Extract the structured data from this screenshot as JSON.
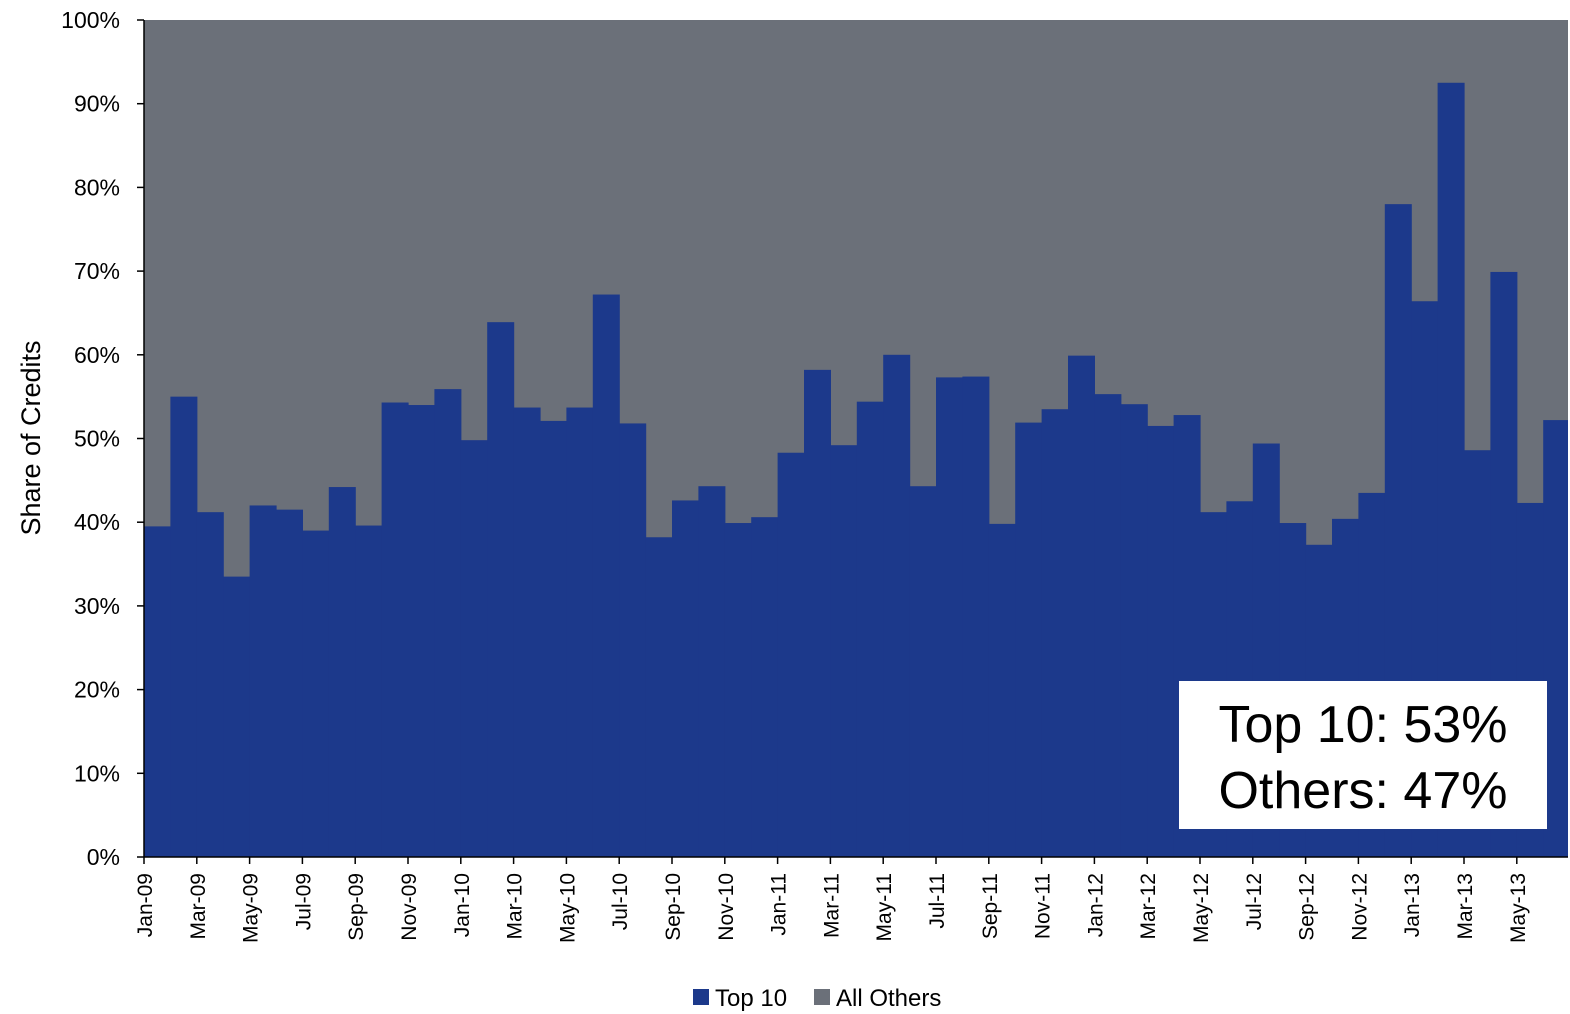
{
  "chart_data": {
    "type": "area",
    "stacked": true,
    "ylabel": "Share of Credits",
    "ylim": [
      0,
      100
    ],
    "y_ticks": [
      "0%",
      "10%",
      "20%",
      "30%",
      "40%",
      "50%",
      "60%",
      "70%",
      "80%",
      "90%",
      "100%"
    ],
    "x_tick_labels": [
      "Jan-09",
      "Mar-09",
      "May-09",
      "Jul-09",
      "Sep-09",
      "Nov-09",
      "Jan-10",
      "Mar-10",
      "May-10",
      "Jul-10",
      "Sep-10",
      "Nov-10",
      "Jan-11",
      "Mar-11",
      "May-11",
      "Jul-11",
      "Sep-11",
      "Nov-11",
      "Jan-12",
      "Mar-12",
      "May-12",
      "Jul-12",
      "Sep-12",
      "Nov-12",
      "Jan-13",
      "Mar-13",
      "May-13"
    ],
    "x": [
      "Jan-09",
      "Feb-09",
      "Mar-09",
      "Apr-09",
      "May-09",
      "Jun-09",
      "Jul-09",
      "Aug-09",
      "Sep-09",
      "Oct-09",
      "Nov-09",
      "Dec-09",
      "Jan-10",
      "Feb-10",
      "Mar-10",
      "Apr-10",
      "May-10",
      "Jun-10",
      "Jul-10",
      "Aug-10",
      "Sep-10",
      "Oct-10",
      "Nov-10",
      "Dec-10",
      "Jan-11",
      "Feb-11",
      "Mar-11",
      "Apr-11",
      "May-11",
      "Jun-11",
      "Jul-11",
      "Aug-11",
      "Sep-11",
      "Oct-11",
      "Nov-11",
      "Dec-11",
      "Jan-12",
      "Feb-12",
      "Mar-12",
      "Apr-12",
      "May-12",
      "Jun-12",
      "Jul-12",
      "Aug-12",
      "Sep-12",
      "Oct-12",
      "Nov-12",
      "Dec-12",
      "Jan-13",
      "Feb-13",
      "Mar-13",
      "Apr-13",
      "May-13",
      "Jun-13"
    ],
    "series": [
      {
        "name": "Top 10",
        "color": "#1c398b",
        "values": [
          39.5,
          55.0,
          41.2,
          33.5,
          42.0,
          41.5,
          39.0,
          44.2,
          39.6,
          54.3,
          54.0,
          55.9,
          49.8,
          63.9,
          53.7,
          52.1,
          53.7,
          67.2,
          51.8,
          38.2,
          42.6,
          44.3,
          39.9,
          40.6,
          48.3,
          58.2,
          49.2,
          54.4,
          60.0,
          44.3,
          57.3,
          57.4,
          39.8,
          51.9,
          53.5,
          59.9,
          55.3,
          54.1,
          51.5,
          52.8,
          41.2,
          42.5,
          49.4,
          39.9,
          37.3,
          40.4,
          43.5,
          78.0,
          66.4,
          92.5,
          48.6,
          69.9,
          42.3,
          52.2
        ]
      },
      {
        "name": "All Others",
        "color": "#6b7079",
        "values": [
          60.5,
          45.0,
          58.8,
          66.5,
          58.0,
          58.5,
          61.0,
          55.8,
          60.4,
          45.7,
          46.0,
          44.1,
          50.2,
          36.1,
          46.3,
          47.9,
          46.3,
          32.8,
          48.2,
          61.8,
          57.4,
          55.7,
          60.1,
          59.4,
          51.7,
          41.8,
          50.8,
          45.6,
          40.0,
          55.7,
          42.7,
          42.6,
          60.2,
          48.1,
          46.5,
          40.1,
          44.7,
          45.9,
          48.5,
          47.2,
          58.8,
          57.5,
          50.6,
          60.1,
          62.7,
          59.6,
          56.5,
          22.0,
          33.6,
          7.5,
          51.4,
          30.1,
          57.7,
          47.8
        ]
      }
    ],
    "legend": {
      "placement": "bottom-center",
      "items": [
        "Top 10",
        "All Others"
      ]
    },
    "annotation": {
      "line1": "Top 10: 53%",
      "line2": "Others: 47%",
      "placement": "bottom-right"
    },
    "grid": false
  }
}
